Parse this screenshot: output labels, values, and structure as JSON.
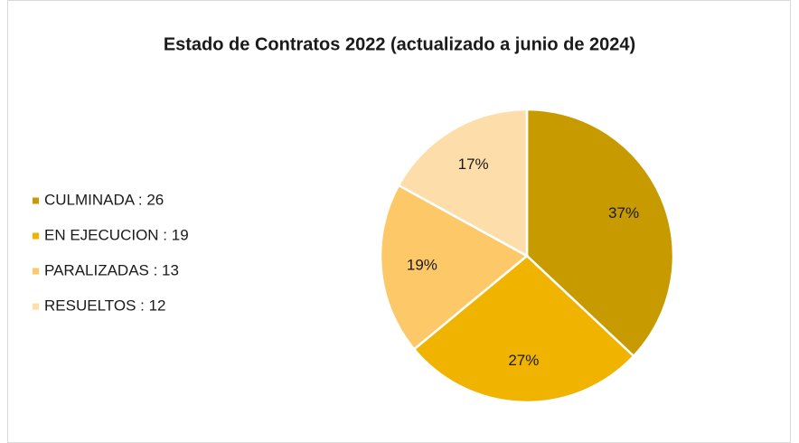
{
  "chart_data": {
    "type": "pie",
    "title": "Estado de Contratos 2022 (actualizado a junio de 2024)",
    "categories": [
      "CULMINADA : 26",
      "EN EJECUCION : 19",
      "PARALIZADAS : 13",
      "RESUELTOS : 12"
    ],
    "values": [
      37,
      27,
      19,
      17
    ],
    "value_labels": [
      "37%",
      "27%",
      "19%",
      "17%"
    ],
    "colors": [
      "#c79a00",
      "#f0b400",
      "#fdc867",
      "#fddeaa"
    ],
    "legend": "left"
  }
}
